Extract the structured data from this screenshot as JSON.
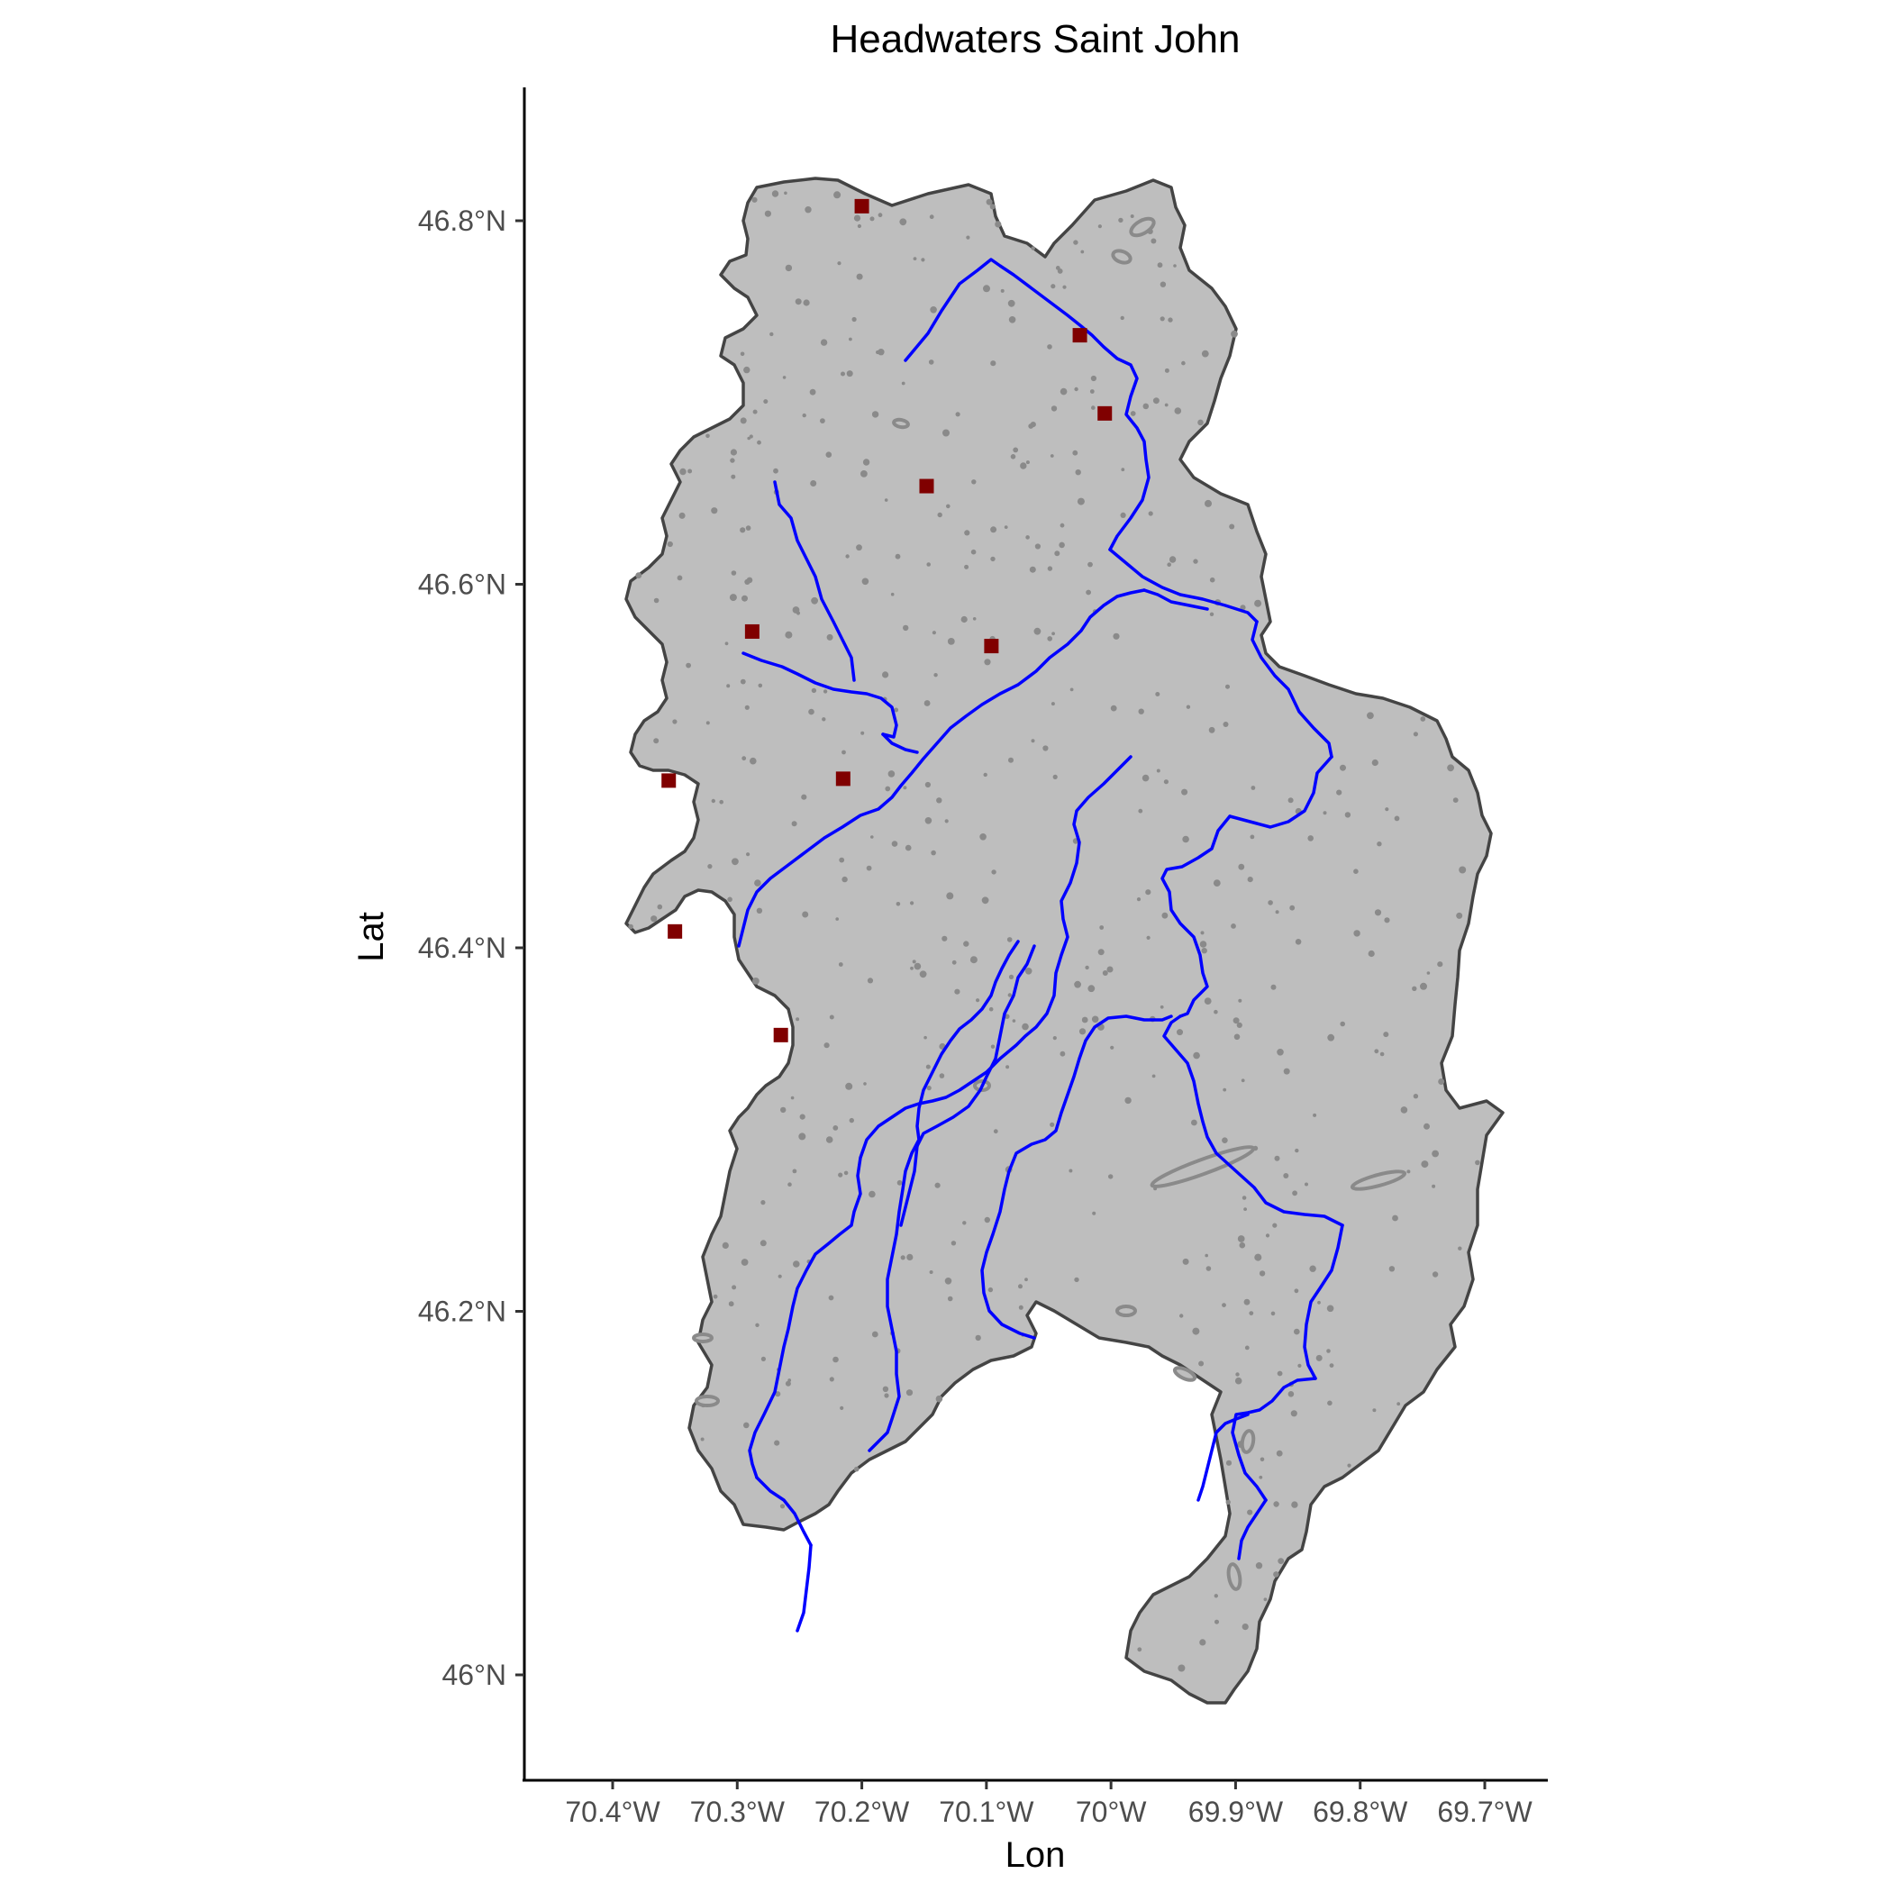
{
  "map": {
    "title": "Headwaters Saint John",
    "x_axis_title": "Lon",
    "y_axis_title": "Lat",
    "x_ticks": [
      "70.4°W",
      "70.3°W",
      "70.2°W",
      "70.1°W",
      "70°W",
      "69.9°W",
      "69.8°W",
      "69.7°W"
    ],
    "y_ticks": [
      "46.8°N",
      "46.6°N",
      "46.4°N",
      "46.2°N",
      "46°N"
    ],
    "colors": {
      "basin_fill": "#bebebe",
      "basin_border": "#444444",
      "lakes": "#8a8a8a",
      "rivers": "#0000ff",
      "stations": "#800000"
    }
  },
  "chart_data": {
    "type": "map",
    "title": "Headwaters Saint John",
    "xlabel": "Lon",
    "ylabel": "Lat",
    "xlim": [
      -70.47,
      -69.66
    ],
    "ylim": [
      45.94,
      46.87
    ],
    "x_ticks": [
      -70.4,
      -70.3,
      -70.2,
      -70.1,
      -70.0,
      -69.9,
      -69.8,
      -69.7
    ],
    "y_ticks": [
      46.8,
      46.6,
      46.4,
      46.2,
      46.0
    ],
    "grid": false,
    "stations": [
      {
        "lon": -70.2,
        "lat": 46.808
      },
      {
        "lon": -70.025,
        "lat": 46.737
      },
      {
        "lon": -70.005,
        "lat": 46.694
      },
      {
        "lon": -70.148,
        "lat": 46.654
      },
      {
        "lon": -70.288,
        "lat": 46.574
      },
      {
        "lon": -70.096,
        "lat": 46.566
      },
      {
        "lon": -70.355,
        "lat": 46.492
      },
      {
        "lon": -70.215,
        "lat": 46.493
      },
      {
        "lon": -70.35,
        "lat": 46.409
      },
      {
        "lon": -70.265,
        "lat": 46.352
      }
    ]
  }
}
